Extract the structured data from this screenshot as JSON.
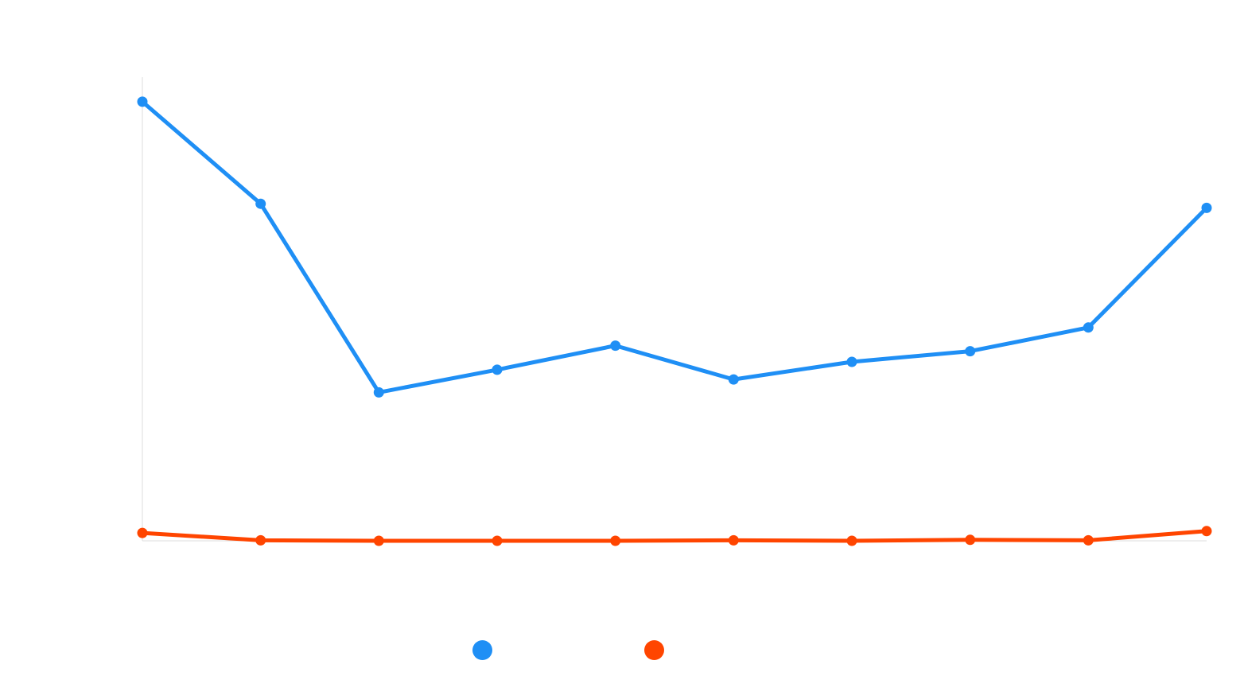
{
  "chart_data": {
    "type": "line",
    "title": "",
    "xlabel": "",
    "ylabel": "",
    "x": [
      1,
      2,
      3,
      4,
      5,
      6,
      7,
      8,
      9,
      10
    ],
    "ylim": [
      0,
      100
    ],
    "grid": false,
    "legend_position": "bottom-center",
    "series": [
      {
        "color": "#1f8ff5",
        "values": [
          94.7,
          72.7,
          32.0,
          36.9,
          42.1,
          34.8,
          38.6,
          40.9,
          46.0,
          71.8
        ]
      },
      {
        "color": "#ff4500",
        "values": [
          1.7,
          0.1,
          0.0,
          0.0,
          0.0,
          0.1,
          0.0,
          0.2,
          0.1,
          2.1
        ]
      }
    ]
  }
}
